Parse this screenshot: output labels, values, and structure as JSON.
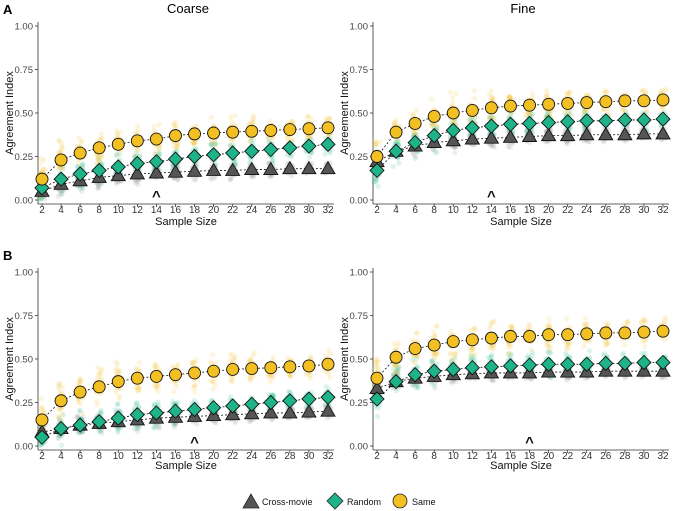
{
  "row_labels": [
    "A",
    "B"
  ],
  "column_titles": [
    "Coarse",
    "Fine"
  ],
  "legend": {
    "entries": [
      {
        "label": "Cross-movie",
        "shape": "triangle",
        "color": "#555555"
      },
      {
        "label": "Random",
        "shape": "diamond",
        "color": "#1fb38a"
      },
      {
        "label": "Same",
        "shape": "circle",
        "color": "#f3c024"
      }
    ]
  },
  "colors": {
    "cross": "#555555",
    "random": "#1fb38a",
    "same": "#f3c024",
    "scatter_same": "#f5c842",
    "scatter_random": "#3cc49a",
    "scatter_cross": "#9a9a9a"
  },
  "chart_data": [
    {
      "id": "A-coarse",
      "type": "scatter",
      "panel": "A",
      "title": "Coarse",
      "xlabel": "Sample Size",
      "ylabel": "Agreement Index",
      "x": [
        2,
        4,
        6,
        8,
        10,
        12,
        14,
        16,
        18,
        20,
        22,
        24,
        26,
        28,
        30,
        32
      ],
      "x_ticks": [
        "2",
        "4",
        "6",
        "8",
        "10",
        "12",
        "14",
        "16",
        "18",
        "20",
        "22",
        "24",
        "26",
        "28",
        "30",
        "32"
      ],
      "y_ticks": [
        "0.00",
        "0.25",
        "0.50",
        "0.75",
        "1.00"
      ],
      "ylim": [
        0,
        1
      ],
      "marker_at": 14,
      "marker_symbol": "^",
      "series": [
        {
          "name": "Same",
          "values": [
            0.12,
            0.23,
            0.27,
            0.3,
            0.32,
            0.34,
            0.35,
            0.37,
            0.38,
            0.385,
            0.39,
            0.395,
            0.4,
            0.405,
            0.41,
            0.415
          ]
        },
        {
          "name": "Random",
          "values": [
            0.07,
            0.12,
            0.15,
            0.17,
            0.19,
            0.21,
            0.22,
            0.235,
            0.25,
            0.26,
            0.27,
            0.28,
            0.29,
            0.3,
            0.31,
            0.32
          ]
        },
        {
          "name": "Cross-movie",
          "values": [
            0.05,
            0.09,
            0.11,
            0.13,
            0.14,
            0.15,
            0.155,
            0.16,
            0.165,
            0.17,
            0.17,
            0.175,
            0.175,
            0.18,
            0.18,
            0.18
          ]
        }
      ]
    },
    {
      "id": "A-fine",
      "type": "scatter",
      "panel": "A",
      "title": "Fine",
      "xlabel": "Sample Size",
      "ylabel": "Agreement Index",
      "x": [
        2,
        4,
        6,
        8,
        10,
        12,
        14,
        16,
        18,
        20,
        22,
        24,
        26,
        28,
        30,
        32
      ],
      "x_ticks": [
        "2",
        "4",
        "6",
        "8",
        "10",
        "12",
        "14",
        "16",
        "18",
        "20",
        "22",
        "24",
        "26",
        "28",
        "30",
        "32"
      ],
      "y_ticks": [
        "0.00",
        "0.25",
        "0.50",
        "0.75",
        "1.00"
      ],
      "ylim": [
        0,
        1
      ],
      "marker_at": 14,
      "marker_symbol": "^",
      "series": [
        {
          "name": "Same",
          "values": [
            0.25,
            0.39,
            0.44,
            0.48,
            0.5,
            0.515,
            0.53,
            0.54,
            0.545,
            0.55,
            0.555,
            0.56,
            0.565,
            0.57,
            0.57,
            0.575
          ]
        },
        {
          "name": "Random",
          "values": [
            0.17,
            0.28,
            0.33,
            0.37,
            0.4,
            0.415,
            0.425,
            0.435,
            0.44,
            0.445,
            0.45,
            0.455,
            0.455,
            0.46,
            0.46,
            0.465
          ]
        },
        {
          "name": "Cross-movie",
          "values": [
            0.22,
            0.28,
            0.31,
            0.33,
            0.34,
            0.35,
            0.355,
            0.36,
            0.365,
            0.37,
            0.37,
            0.375,
            0.375,
            0.375,
            0.38,
            0.38
          ]
        }
      ]
    },
    {
      "id": "B-coarse",
      "type": "scatter",
      "panel": "B",
      "title": "Coarse",
      "xlabel": "Sample Size",
      "ylabel": "Agreement Index",
      "x": [
        2,
        4,
        6,
        8,
        10,
        12,
        14,
        16,
        18,
        20,
        22,
        24,
        26,
        28,
        30,
        32
      ],
      "x_ticks": [
        "2",
        "4",
        "6",
        "8",
        "10",
        "12",
        "14",
        "16",
        "18",
        "20",
        "22",
        "24",
        "26",
        "28",
        "30",
        "32"
      ],
      "y_ticks": [
        "0.00",
        "0.25",
        "0.50",
        "0.75",
        "1.00"
      ],
      "ylim": [
        0,
        1
      ],
      "marker_at": 18,
      "marker_symbol": "^",
      "series": [
        {
          "name": "Same",
          "values": [
            0.15,
            0.26,
            0.31,
            0.34,
            0.37,
            0.39,
            0.4,
            0.41,
            0.42,
            0.43,
            0.44,
            0.445,
            0.45,
            0.455,
            0.46,
            0.47
          ]
        },
        {
          "name": "Random",
          "values": [
            0.05,
            0.1,
            0.12,
            0.14,
            0.16,
            0.18,
            0.19,
            0.2,
            0.21,
            0.22,
            0.23,
            0.24,
            0.25,
            0.26,
            0.27,
            0.28
          ]
        },
        {
          "name": "Cross-movie",
          "values": [
            0.08,
            0.1,
            0.12,
            0.13,
            0.14,
            0.15,
            0.16,
            0.165,
            0.17,
            0.175,
            0.18,
            0.185,
            0.19,
            0.19,
            0.195,
            0.2
          ]
        }
      ]
    },
    {
      "id": "B-fine",
      "type": "scatter",
      "panel": "B",
      "title": "Fine",
      "xlabel": "Sample Size",
      "ylabel": "Agreement Index",
      "x": [
        2,
        4,
        6,
        8,
        10,
        12,
        14,
        16,
        18,
        20,
        22,
        24,
        26,
        28,
        30,
        32
      ],
      "x_ticks": [
        "2",
        "4",
        "6",
        "8",
        "10",
        "12",
        "14",
        "16",
        "18",
        "20",
        "22",
        "24",
        "26",
        "28",
        "30",
        "32"
      ],
      "y_ticks": [
        "0.00",
        "0.25",
        "0.50",
        "0.75",
        "1.00"
      ],
      "ylim": [
        0,
        1
      ],
      "marker_at": 18,
      "marker_symbol": "^",
      "series": [
        {
          "name": "Same",
          "values": [
            0.39,
            0.51,
            0.56,
            0.58,
            0.6,
            0.61,
            0.62,
            0.63,
            0.63,
            0.64,
            0.64,
            0.645,
            0.65,
            0.65,
            0.655,
            0.66
          ]
        },
        {
          "name": "Random",
          "values": [
            0.27,
            0.37,
            0.41,
            0.43,
            0.44,
            0.45,
            0.455,
            0.46,
            0.465,
            0.47,
            0.47,
            0.47,
            0.475,
            0.475,
            0.48,
            0.48
          ]
        },
        {
          "name": "Cross-movie",
          "values": [
            0.33,
            0.37,
            0.39,
            0.4,
            0.41,
            0.415,
            0.42,
            0.42,
            0.42,
            0.425,
            0.425,
            0.425,
            0.43,
            0.43,
            0.43,
            0.43
          ]
        }
      ]
    }
  ]
}
